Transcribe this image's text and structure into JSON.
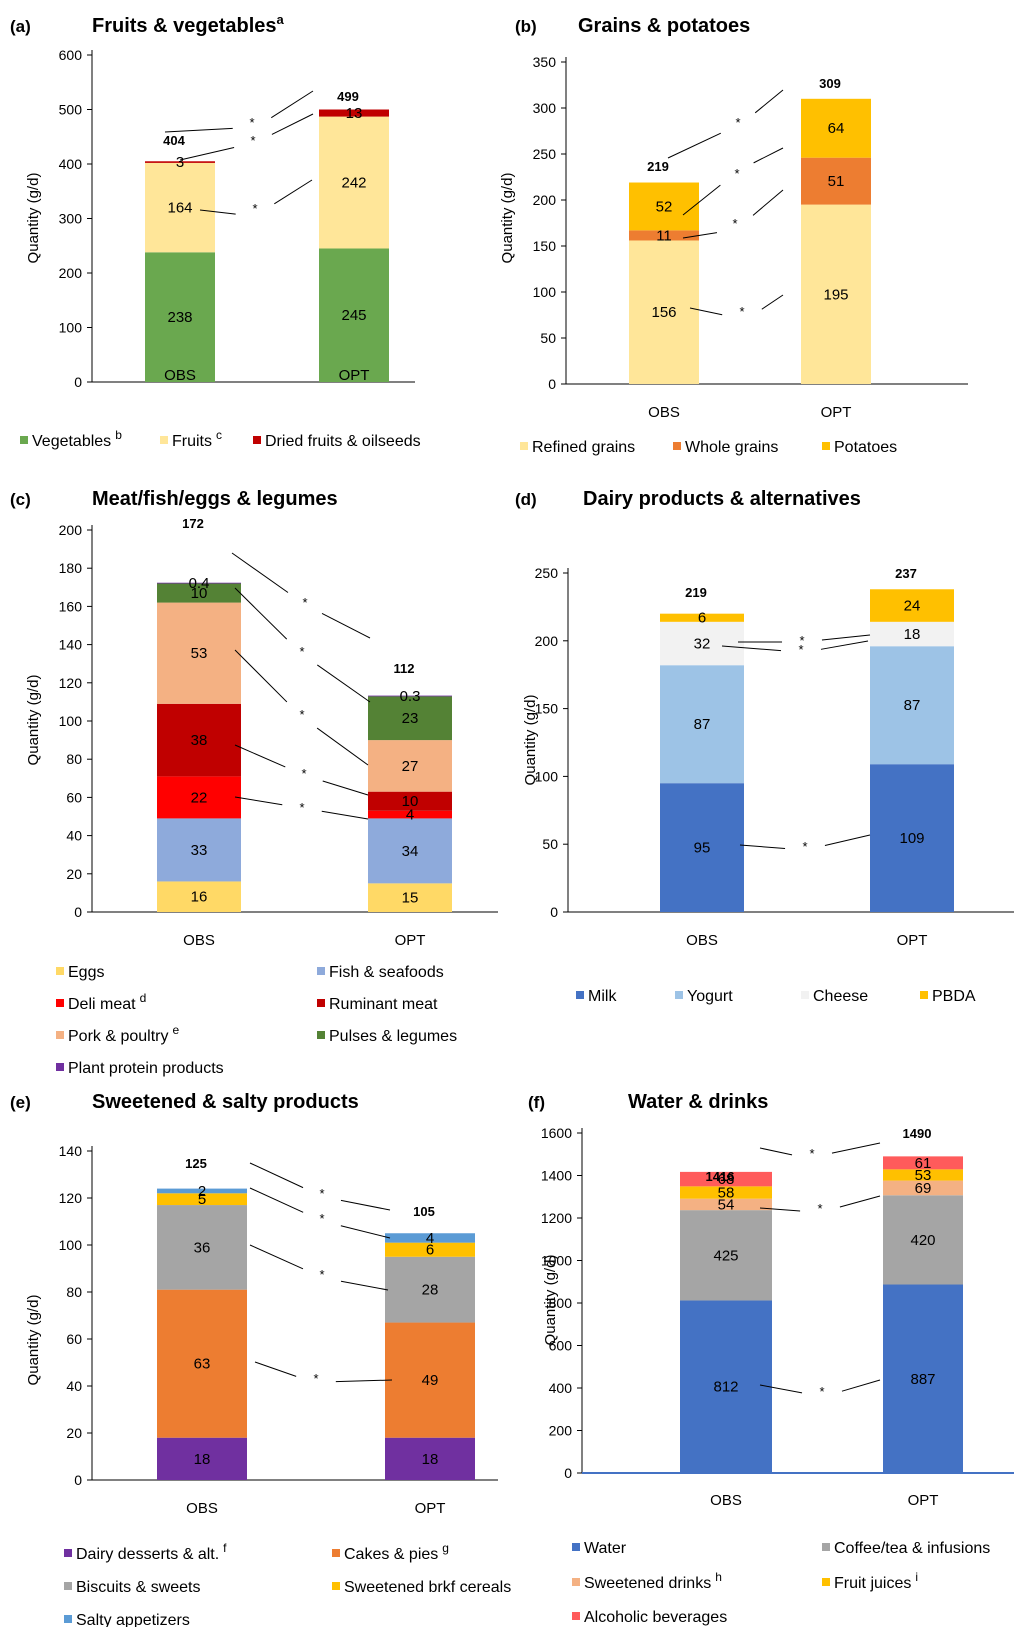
{
  "figure": {
    "panels": [
      {
        "id": "a",
        "letter": "(a)",
        "title": "Fruits & vegetables",
        "title_sup": "a",
        "ylabel": "Quantity (g/d)",
        "ymax": 600,
        "ticks": [
          0,
          100,
          200,
          300,
          400,
          500,
          600
        ],
        "totals": [
          "404",
          "499"
        ],
        "labels": [
          [
            "238",
            "245"
          ],
          [
            "164",
            "242"
          ],
          [
            "3",
            "13"
          ]
        ],
        "legend": [
          {
            "name": "Vegetables",
            "sup": "b"
          },
          {
            "name": "Fruits",
            "sup": "c"
          },
          {
            "name": "Dried fruits & oilseeds",
            "sup": ""
          }
        ]
      },
      {
        "id": "b",
        "letter": "(b)",
        "title": "Grains & potatoes",
        "title_sup": "",
        "ylabel": "Quantity (g/d)",
        "ymax": 350,
        "ticks": [
          0,
          50,
          100,
          150,
          200,
          250,
          300,
          350
        ],
        "totals": [
          "219",
          "309"
        ],
        "labels": [
          [
            "156",
            "195"
          ],
          [
            "11",
            "51"
          ],
          [
            "52",
            "64"
          ]
        ],
        "legend": [
          {
            "name": "Refined grains",
            "sup": ""
          },
          {
            "name": "Whole grains",
            "sup": ""
          },
          {
            "name": "Potatoes",
            "sup": ""
          }
        ]
      },
      {
        "id": "c",
        "letter": "(c)",
        "title": "Meat/fish/eggs & legumes",
        "title_sup": "",
        "ylabel": "Quantity (g/d)",
        "ymax": 200,
        "ticks": [
          0,
          20,
          40,
          60,
          80,
          100,
          120,
          140,
          160,
          180,
          200
        ],
        "totals": [
          "172",
          "112"
        ],
        "labels": [
          [
            "16",
            "15"
          ],
          [
            "33",
            "34"
          ],
          [
            "22",
            "4"
          ],
          [
            "38",
            "10"
          ],
          [
            "53",
            "27"
          ],
          [
            "10",
            "23"
          ],
          [
            "0.4",
            "0.3"
          ]
        ],
        "legend": [
          {
            "name": "Eggs",
            "sup": ""
          },
          {
            "name": "Fish & seafoods",
            "sup": ""
          },
          {
            "name": "Deli meat",
            "sup": "d"
          },
          {
            "name": "Ruminant meat",
            "sup": ""
          },
          {
            "name": "Pork & poultry",
            "sup": "e"
          },
          {
            "name": "Pulses & legumes",
            "sup": ""
          },
          {
            "name": "Plant protein products",
            "sup": ""
          }
        ]
      },
      {
        "id": "d",
        "letter": "(d)",
        "title": "Dairy products & alternatives",
        "title_sup": "",
        "ylabel": "Quantity (g/d)",
        "ymax": 250,
        "ticks": [
          0,
          50,
          100,
          150,
          200,
          250
        ],
        "totals": [
          "219",
          "237"
        ],
        "labels": [
          [
            "95",
            "109"
          ],
          [
            "87",
            "87"
          ],
          [
            "32",
            "18"
          ],
          [
            "6",
            "24"
          ]
        ],
        "legend": [
          {
            "name": "Milk",
            "sup": ""
          },
          {
            "name": "Yogurt",
            "sup": ""
          },
          {
            "name": "Cheese",
            "sup": ""
          },
          {
            "name": "PBDA",
            "sup": ""
          }
        ]
      },
      {
        "id": "e",
        "letter": "(e)",
        "title": "Sweetened & salty products",
        "title_sup": "",
        "ylabel": "Quantity (g/d)",
        "ymax": 140,
        "ticks": [
          0,
          20,
          40,
          60,
          80,
          100,
          120,
          140
        ],
        "totals": [
          "125",
          "105"
        ],
        "labels": [
          [
            "18",
            "18"
          ],
          [
            "63",
            "49"
          ],
          [
            "36",
            "28"
          ],
          [
            "5",
            "6"
          ],
          [
            "2",
            "4"
          ]
        ],
        "legend": [
          {
            "name": "Dairy desserts & alt.",
            "sup": "f"
          },
          {
            "name": "Cakes & pies",
            "sup": "g"
          },
          {
            "name": "Biscuits & sweets",
            "sup": ""
          },
          {
            "name": "Sweetened brkf cereals",
            "sup": ""
          },
          {
            "name": "Salty appetizers",
            "sup": ""
          }
        ]
      },
      {
        "id": "f",
        "letter": "(f)",
        "title": "Water & drinks",
        "title_sup": "",
        "ylabel": "Quantity (g/d)",
        "ymax": 1600,
        "ticks": [
          0,
          200,
          400,
          600,
          800,
          1000,
          1200,
          1400,
          1600
        ],
        "totals": [
          "1416",
          "1490"
        ],
        "labels": [
          [
            "812",
            "887"
          ],
          [
            "425",
            "420"
          ],
          [
            "54",
            "69"
          ],
          [
            "58",
            "53"
          ],
          [
            "68",
            "61"
          ]
        ],
        "legend": [
          {
            "name": "Water",
            "sup": ""
          },
          {
            "name": "Coffee/tea & infusions",
            "sup": ""
          },
          {
            "name": "Sweetened drinks",
            "sup": "h"
          },
          {
            "name": "Fruit juices",
            "sup": "i"
          },
          {
            "name": "Alcoholic beverages",
            "sup": ""
          }
        ]
      }
    ],
    "significance_marker": "*"
  },
  "chart_data": [
    {
      "type": "bar",
      "stacked": true,
      "title": "Fruits & vegetables",
      "ylabel": "Quantity (g/d)",
      "ylim": [
        0,
        600
      ],
      "categories": [
        "OBS",
        "OPT"
      ],
      "colors": [
        "#6aa84f",
        "#ffe699",
        "#c00000"
      ],
      "series": [
        {
          "name": "Vegetables",
          "values": [
            238,
            245
          ]
        },
        {
          "name": "Fruits",
          "values": [
            164,
            242
          ]
        },
        {
          "name": "Dried fruits & oilseeds",
          "values": [
            3,
            13
          ]
        }
      ],
      "totals": [
        404,
        499
      ],
      "significant_series": [
        "Vegetables",
        "Fruits",
        "Dried fruits & oilseeds"
      ],
      "significant_total": true
    },
    {
      "type": "bar",
      "stacked": true,
      "title": "Grains & potatoes",
      "ylabel": "Quantity (g/d)",
      "ylim": [
        0,
        350
      ],
      "categories": [
        "OBS",
        "OPT"
      ],
      "colors": [
        "#ffe699",
        "#ed7d31",
        "#ffc000"
      ],
      "series": [
        {
          "name": "Refined grains",
          "values": [
            156,
            195
          ]
        },
        {
          "name": "Whole grains",
          "values": [
            11,
            51
          ]
        },
        {
          "name": "Potatoes",
          "values": [
            52,
            64
          ]
        }
      ],
      "totals": [
        219,
        309
      ],
      "significant_series": [
        "Refined grains",
        "Whole grains",
        "Potatoes"
      ],
      "significant_total": true
    },
    {
      "type": "bar",
      "stacked": true,
      "title": "Meat/fish/eggs & legumes",
      "ylabel": "Quantity (g/d)",
      "ylim": [
        0,
        200
      ],
      "categories": [
        "OBS",
        "OPT"
      ],
      "colors": [
        "#ffd966",
        "#8eaadb",
        "#ff0000",
        "#c00000",
        "#f4b183",
        "#548235",
        "#7030a0"
      ],
      "series": [
        {
          "name": "Eggs",
          "values": [
            16,
            15
          ]
        },
        {
          "name": "Fish & seafoods",
          "values": [
            33,
            34
          ]
        },
        {
          "name": "Deli meat",
          "values": [
            22,
            4
          ]
        },
        {
          "name": "Ruminant meat",
          "values": [
            38,
            10
          ]
        },
        {
          "name": "Pork & poultry",
          "values": [
            53,
            27
          ]
        },
        {
          "name": "Pulses & legumes",
          "values": [
            10,
            23
          ]
        },
        {
          "name": "Plant protein products",
          "values": [
            0.4,
            0.3
          ]
        }
      ],
      "totals": [
        172,
        112
      ],
      "significant_series": [
        "Deli meat",
        "Ruminant meat",
        "Pork & poultry",
        "Pulses & legumes"
      ],
      "significant_total": true
    },
    {
      "type": "bar",
      "stacked": true,
      "title": "Dairy products & alternatives",
      "ylabel": "Quantity (g/d)",
      "ylim": [
        0,
        250
      ],
      "categories": [
        "OBS",
        "OPT"
      ],
      "colors": [
        "#4472c4",
        "#9dc3e6",
        "#f2f2f2",
        "#ffc000"
      ],
      "series": [
        {
          "name": "Milk",
          "values": [
            95,
            109
          ]
        },
        {
          "name": "Yogurt",
          "values": [
            87,
            87
          ]
        },
        {
          "name": "Cheese",
          "values": [
            32,
            18
          ]
        },
        {
          "name": "PBDA",
          "values": [
            6,
            24
          ]
        }
      ],
      "totals": [
        219,
        237
      ],
      "significant_series": [
        "Milk",
        "Cheese",
        "PBDA"
      ],
      "significant_total": false
    },
    {
      "type": "bar",
      "stacked": true,
      "title": "Sweetened & salty products",
      "ylabel": "Quantity (g/d)",
      "ylim": [
        0,
        140
      ],
      "categories": [
        "OBS",
        "OPT"
      ],
      "colors": [
        "#7030a0",
        "#ed7d31",
        "#a5a5a5",
        "#ffc000",
        "#5b9bd5"
      ],
      "series": [
        {
          "name": "Dairy desserts & alt.",
          "values": [
            18,
            18
          ]
        },
        {
          "name": "Cakes & pies",
          "values": [
            63,
            49
          ]
        },
        {
          "name": "Biscuits & sweets",
          "values": [
            36,
            28
          ]
        },
        {
          "name": "Sweetened brkf cereals",
          "values": [
            5,
            6
          ]
        },
        {
          "name": "Salty appetizers",
          "values": [
            2,
            4
          ]
        }
      ],
      "totals": [
        125,
        105
      ],
      "significant_series": [
        "Cakes & pies",
        "Biscuits & sweets",
        "Salty appetizers"
      ],
      "significant_total": true
    },
    {
      "type": "bar",
      "stacked": true,
      "title": "Water & drinks",
      "ylabel": "Quantity (g/d)",
      "ylim": [
        0,
        1600
      ],
      "categories": [
        "OBS",
        "OPT"
      ],
      "colors": [
        "#4472c4",
        "#a5a5a5",
        "#f4b183",
        "#ffc000",
        "#ff5b5b"
      ],
      "series": [
        {
          "name": "Water",
          "values": [
            812,
            887
          ]
        },
        {
          "name": "Coffee/tea & infusions",
          "values": [
            425,
            420
          ]
        },
        {
          "name": "Sweetened drinks",
          "values": [
            54,
            69
          ]
        },
        {
          "name": "Fruit juices",
          "values": [
            58,
            53
          ]
        },
        {
          "name": "Alcoholic beverages",
          "values": [
            68,
            61
          ]
        }
      ],
      "totals": [
        1416,
        1490
      ],
      "significant_series": [
        "Water",
        "Sweetened drinks"
      ],
      "significant_total": true
    }
  ]
}
